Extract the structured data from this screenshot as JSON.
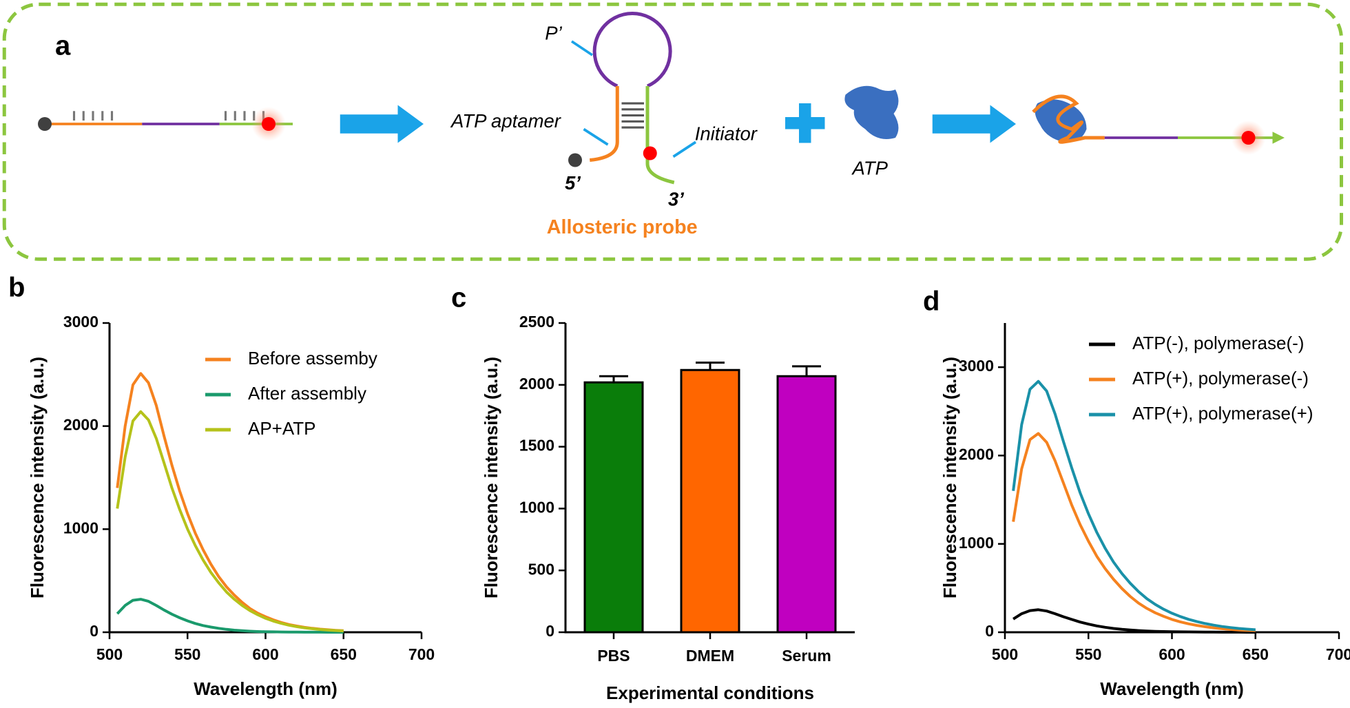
{
  "diagram": {
    "label": "a",
    "p_prime": "P’",
    "aptamer": "ATP aptamer",
    "initiator": "Initiator",
    "five_prime": "5’",
    "three_prime": "3’",
    "probe": "Allosteric probe",
    "atp": "ATP"
  },
  "chart_data": [
    {
      "type": "line",
      "label": "b",
      "xlabel": "Wavelength (nm)",
      "ylabel": "Fluorescence intensity (a.u.)",
      "xlim": [
        500,
        700
      ],
      "xticks": [
        500,
        550,
        600,
        650,
        700
      ],
      "ylim": [
        0,
        3000
      ],
      "yticks": [
        0,
        1000,
        2000,
        3000
      ],
      "x": [
        505,
        510,
        515,
        520,
        525,
        530,
        535,
        540,
        545,
        550,
        555,
        560,
        565,
        570,
        575,
        580,
        585,
        590,
        595,
        600,
        605,
        610,
        615,
        620,
        625,
        630,
        635,
        640,
        645,
        650
      ],
      "series": [
        {
          "name": "Before assemby",
          "color": "#f5821f",
          "values": [
            1400,
            2000,
            2400,
            2510,
            2420,
            2200,
            1900,
            1620,
            1370,
            1150,
            960,
            800,
            660,
            540,
            440,
            360,
            290,
            230,
            185,
            150,
            120,
            95,
            75,
            60,
            48,
            38,
            30,
            24,
            19,
            15
          ]
        },
        {
          "name": "After assembly",
          "color": "#1a9a6c",
          "values": [
            180,
            260,
            310,
            320,
            300,
            260,
            215,
            175,
            140,
            110,
            85,
            65,
            50,
            38,
            28,
            20,
            15,
            10,
            7,
            5,
            4,
            3,
            2,
            2,
            1,
            1,
            1,
            0,
            0,
            0
          ]
        },
        {
          "name": "AP+ATP",
          "color": "#b5c21a",
          "values": [
            1200,
            1700,
            2050,
            2140,
            2060,
            1880,
            1640,
            1400,
            1190,
            1000,
            840,
            700,
            580,
            480,
            390,
            320,
            260,
            210,
            170,
            135,
            108,
            86,
            68,
            54,
            43,
            34,
            27,
            21,
            17,
            13
          ]
        }
      ]
    },
    {
      "type": "bar",
      "label": "c",
      "xlabel": "Experimental conditions",
      "ylabel": "Fluorescence intensity (a.u.)",
      "categories": [
        "PBS",
        "DMEM",
        "Serum"
      ],
      "values": [
        2020,
        2120,
        2070
      ],
      "errors": [
        50,
        60,
        80
      ],
      "colors": [
        "#0a7d0a",
        "#ff6600",
        "#c000c0"
      ],
      "ylim": [
        0,
        2500
      ],
      "yticks": [
        0,
        500,
        1000,
        1500,
        2000,
        2500
      ]
    },
    {
      "type": "line",
      "label": "d",
      "xlabel": "Wavelength (nm)",
      "ylabel": "Fluorescence intensity (a.u.)",
      "xlim": [
        500,
        700
      ],
      "xticks": [
        500,
        550,
        600,
        650,
        700
      ],
      "ylim": [
        0,
        3500
      ],
      "yticks": [
        0,
        1000,
        2000,
        3000
      ],
      "x": [
        505,
        510,
        515,
        520,
        525,
        530,
        535,
        540,
        545,
        550,
        555,
        560,
        565,
        570,
        575,
        580,
        585,
        590,
        595,
        600,
        605,
        610,
        615,
        620,
        625,
        630,
        635,
        640,
        645,
        650
      ],
      "series": [
        {
          "name": "ATP(-), polymerase(-)",
          "color": "#000000",
          "values": [
            150,
            210,
            245,
            255,
            240,
            210,
            175,
            145,
            115,
            92,
            72,
            56,
            43,
            33,
            25,
            19,
            14,
            10,
            8,
            6,
            5,
            4,
            3,
            2,
            2,
            1,
            1,
            1,
            0,
            0
          ]
        },
        {
          "name": "ATP(+), polymerase(-)",
          "color": "#f5821f",
          "values": [
            1250,
            1850,
            2180,
            2250,
            2150,
            1940,
            1690,
            1440,
            1220,
            1030,
            860,
            720,
            600,
            495,
            405,
            330,
            270,
            220,
            180,
            145,
            118,
            95,
            77,
            62,
            50,
            40,
            32,
            26,
            21,
            17
          ]
        },
        {
          "name": "ATP(+), polymerase(+)",
          "color": "#1a91a8",
          "values": [
            1600,
            2350,
            2750,
            2840,
            2730,
            2470,
            2160,
            1860,
            1580,
            1340,
            1130,
            950,
            795,
            665,
            555,
            460,
            380,
            315,
            260,
            215,
            178,
            146,
            120,
            98,
            80,
            65,
            53,
            43,
            35,
            28
          ]
        }
      ]
    }
  ]
}
